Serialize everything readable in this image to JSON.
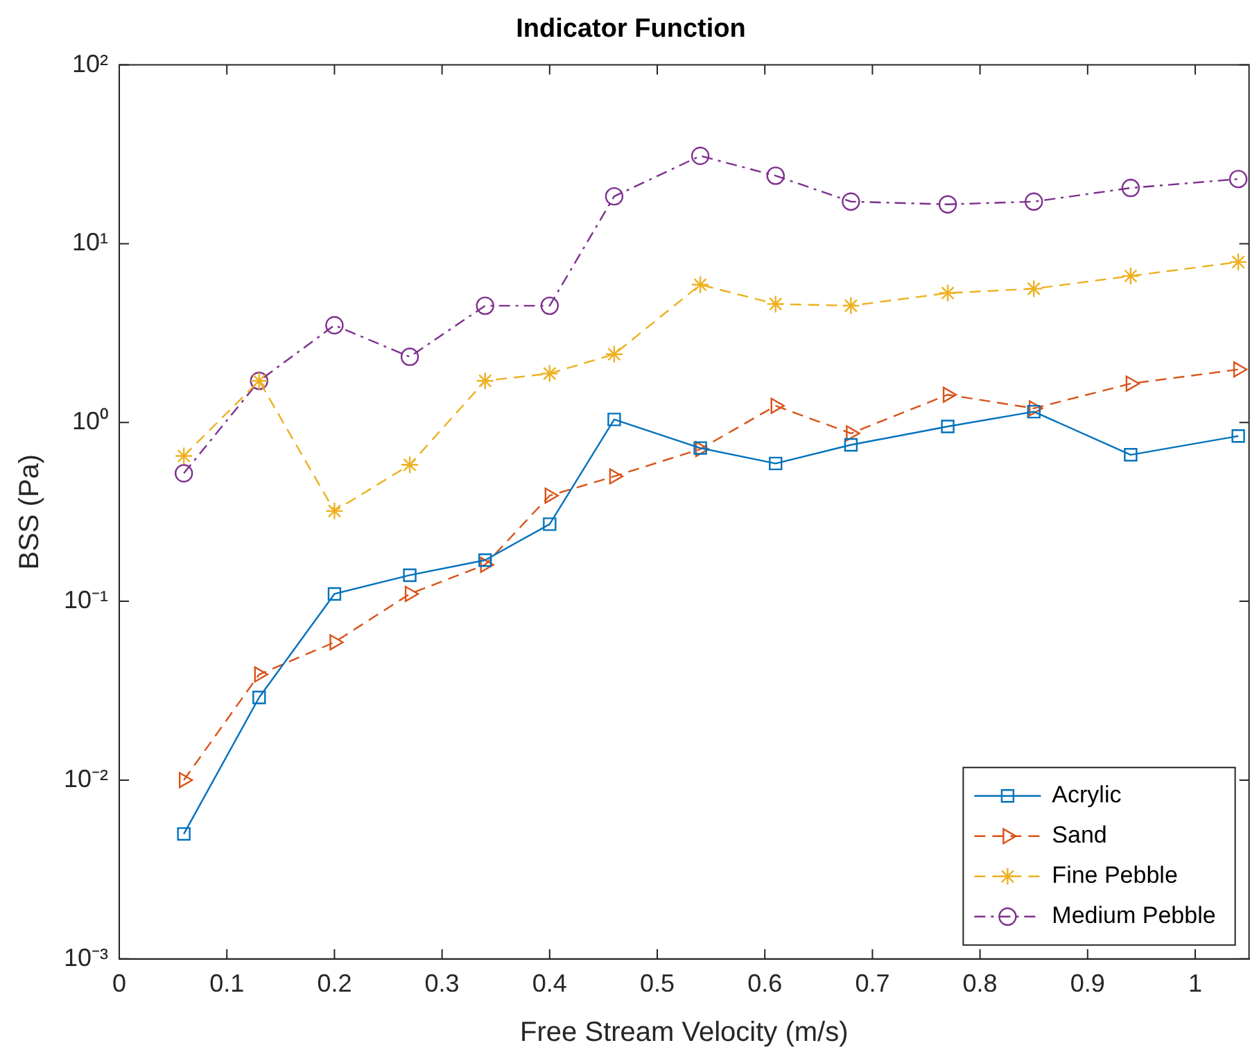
{
  "chart_data": {
    "type": "line",
    "title": "Indicator Function",
    "xlabel": "Free Stream Velocity (m/s)",
    "ylabel": "BSS (Pa)",
    "x": [
      0.06,
      0.13,
      0.2,
      0.27,
      0.34,
      0.4,
      0.46,
      0.54,
      0.61,
      0.68,
      0.77,
      0.85,
      0.94,
      1.04
    ],
    "series": [
      {
        "name": "Acrylic",
        "color": "#0072bd",
        "marker": "square",
        "line_style": "solid",
        "values": [
          0.005,
          0.029,
          0.11,
          0.14,
          0.17,
          0.27,
          1.04,
          0.72,
          0.59,
          0.75,
          0.95,
          1.15,
          0.66,
          0.84
        ]
      },
      {
        "name": "Sand",
        "color": "#d95319",
        "marker": "triangle",
        "line_style": "dashed",
        "values": [
          0.01,
          0.039,
          0.059,
          0.11,
          0.16,
          0.39,
          0.5,
          0.71,
          1.24,
          0.87,
          1.43,
          1.2,
          1.65,
          1.98
        ]
      },
      {
        "name": "Fine Pebble",
        "color": "#edb120",
        "marker": "cross",
        "line_style": "dashed",
        "values": [
          0.65,
          1.71,
          0.32,
          0.58,
          1.71,
          1.88,
          2.41,
          5.9,
          4.6,
          4.5,
          5.3,
          5.6,
          6.6,
          7.9
        ]
      },
      {
        "name": "Medium Pebble",
        "color": "#7e2f8e",
        "marker": "circle",
        "line_style": "dashdot",
        "values": [
          0.52,
          1.71,
          3.5,
          2.33,
          4.5,
          4.5,
          18.4,
          31,
          24,
          17.2,
          16.6,
          17.2,
          20.5,
          23
        ]
      }
    ],
    "log": "y",
    "legend": "bottom right",
    "grid": false,
    "xlim": [
      0,
      1.05
    ],
    "xticks": [
      0,
      0.1,
      0.2,
      0.3,
      0.4,
      0.5,
      0.6,
      0.7,
      0.8,
      0.9,
      1
    ],
    "ylim": [
      0.001,
      100
    ],
    "yticks": [
      {
        "value": 0.001,
        "label": "10⁻³"
      },
      {
        "value": 0.01,
        "label": "10⁻²"
      },
      {
        "value": 0.1,
        "label": "10⁻¹"
      },
      {
        "value": 1,
        "label": "10⁰"
      },
      {
        "value": 10,
        "label": "10¹"
      },
      {
        "value": 100,
        "label": "10²"
      }
    ]
  }
}
